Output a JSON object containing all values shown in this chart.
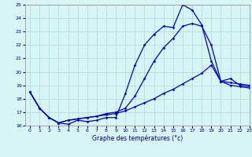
{
  "title": "Graphe des températures (°c)",
  "bg_color": "#d8f5f5",
  "grid_color": "#b0d8d8",
  "line_color": "#0000cc",
  "ylim": [
    16,
    25
  ],
  "xlim": [
    -0.5,
    23
  ],
  "yticks": [
    16,
    17,
    18,
    19,
    20,
    21,
    22,
    23,
    24,
    25
  ],
  "xticks": [
    0,
    1,
    2,
    3,
    4,
    5,
    6,
    7,
    8,
    9,
    10,
    11,
    12,
    13,
    14,
    15,
    16,
    17,
    18,
    19,
    20,
    21,
    22,
    23
  ],
  "series1_x": [
    0,
    1,
    2,
    3,
    4,
    5,
    6,
    7,
    8,
    9,
    10,
    11,
    12,
    13,
    14,
    15,
    16,
    17,
    18,
    19,
    20,
    21,
    22,
    23
  ],
  "series1_y": [
    18.5,
    17.3,
    16.6,
    16.2,
    16.1,
    16.4,
    16.3,
    16.4,
    16.6,
    16.6,
    18.4,
    20.5,
    22.0,
    22.8,
    23.4,
    23.3,
    25.0,
    24.6,
    23.5,
    20.8,
    19.3,
    19.2,
    19.1,
    19.0
  ],
  "series2_x": [
    0,
    1,
    2,
    3,
    4,
    5,
    6,
    7,
    8,
    9,
    10,
    11,
    12,
    13,
    14,
    15,
    16,
    17,
    18,
    19,
    20,
    21,
    22,
    23
  ],
  "series2_y": [
    18.5,
    17.3,
    16.6,
    16.2,
    16.4,
    16.5,
    16.6,
    16.7,
    16.9,
    17.0,
    17.3,
    18.2,
    19.5,
    20.8,
    21.8,
    22.5,
    23.4,
    23.6,
    23.4,
    22.0,
    19.3,
    19.5,
    19.0,
    18.9
  ],
  "series3_x": [
    0,
    1,
    2,
    3,
    4,
    5,
    6,
    7,
    8,
    9,
    10,
    11,
    12,
    13,
    14,
    15,
    16,
    17,
    18,
    19,
    20,
    21,
    22,
    23
  ],
  "series3_y": [
    18.5,
    17.3,
    16.6,
    16.2,
    16.4,
    16.5,
    16.6,
    16.7,
    16.8,
    16.9,
    17.1,
    17.4,
    17.7,
    18.0,
    18.4,
    18.7,
    19.1,
    19.5,
    19.9,
    20.5,
    19.3,
    19.0,
    18.9,
    18.8
  ]
}
